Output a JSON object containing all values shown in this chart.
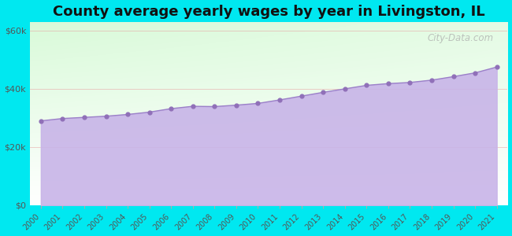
{
  "title": "County average yearly wages by year in Livingston, IL",
  "years": [
    2000,
    2001,
    2002,
    2003,
    2004,
    2005,
    2006,
    2007,
    2008,
    2009,
    2010,
    2011,
    2012,
    2013,
    2014,
    2015,
    2016,
    2017,
    2018,
    2019,
    2020,
    2021
  ],
  "wages": [
    29000,
    29800,
    30200,
    30600,
    31200,
    32000,
    33200,
    34000,
    33900,
    34400,
    35000,
    36200,
    37500,
    38800,
    40000,
    41200,
    41800,
    42200,
    43000,
    44200,
    45500,
    47500
  ],
  "fill_color": "#c8b4e8",
  "line_color": "#9b80c8",
  "marker_color": "#9070b8",
  "outer_background": "#00e8f0",
  "title_fontsize": 13,
  "ytick_labels": [
    "$0",
    "$20k",
    "$40k",
    "$60k"
  ],
  "ytick_values": [
    0,
    20000,
    40000,
    60000
  ],
  "ylim": [
    0,
    63000
  ],
  "watermark": "City-Data.com"
}
